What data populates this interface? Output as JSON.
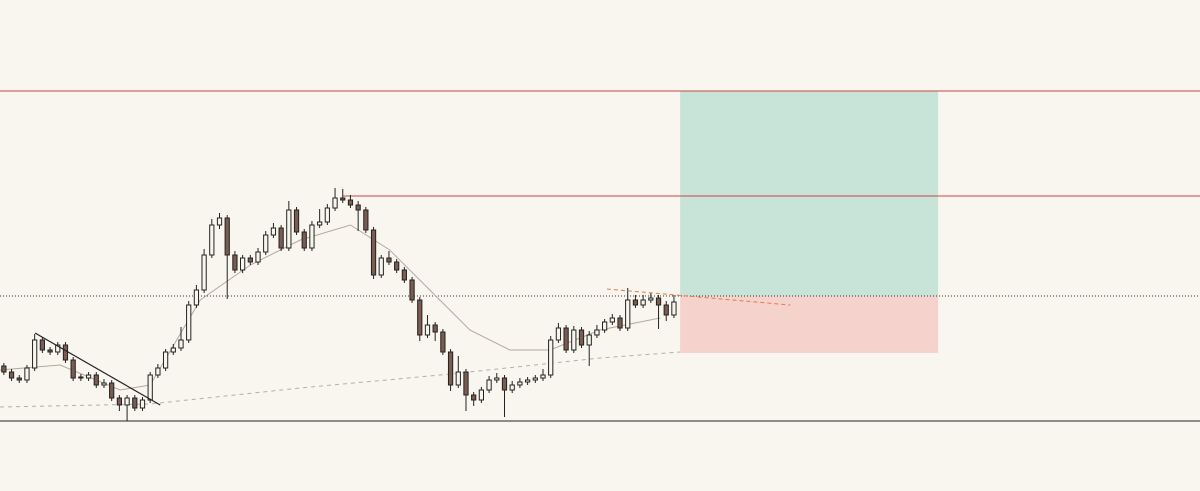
{
  "chart_data": {
    "type": "candlestick",
    "xlim": [
      -0.5,
      155.3
    ],
    "ylim": [
      0,
      491
    ],
    "up_color": "#f8f5ec",
    "down_color": "#7a5c50",
    "edge_color": "#222222",
    "candles": [
      [
        125,
        128,
        116,
        119
      ],
      [
        119,
        122,
        110,
        113
      ],
      [
        113,
        116,
        108,
        111
      ],
      [
        111,
        126,
        108,
        123
      ],
      [
        123,
        157,
        120,
        151
      ],
      [
        151,
        154,
        138,
        141
      ],
      [
        141,
        144,
        136,
        139
      ],
      [
        139,
        149,
        136,
        146
      ],
      [
        146,
        149,
        128,
        131
      ],
      [
        131,
        134,
        110,
        113
      ],
      [
        114,
        117,
        110,
        113
      ],
      [
        113,
        119,
        110,
        116
      ],
      [
        116,
        119,
        103,
        106
      ],
      [
        106,
        112,
        103,
        108
      ],
      [
        108,
        111,
        90,
        93
      ],
      [
        93,
        96,
        80,
        86
      ],
      [
        86,
        96,
        70,
        93
      ],
      [
        93,
        96,
        80,
        83
      ],
      [
        83,
        94,
        80,
        91
      ],
      [
        91,
        119,
        88,
        116
      ],
      [
        116,
        127,
        113,
        123
      ],
      [
        123,
        142,
        120,
        139
      ],
      [
        139,
        147,
        136,
        143
      ],
      [
        143,
        164,
        140,
        151
      ],
      [
        151,
        190,
        148,
        186
      ],
      [
        186,
        206,
        183,
        201
      ],
      [
        201,
        242,
        198,
        236
      ],
      [
        236,
        272,
        233,
        266
      ],
      [
        266,
        278,
        262,
        273
      ],
      [
        273,
        276,
        192,
        236
      ],
      [
        236,
        240,
        218,
        221
      ],
      [
        221,
        236,
        218,
        233
      ],
      [
        233,
        236,
        226,
        229
      ],
      [
        229,
        243,
        226,
        239
      ],
      [
        239,
        260,
        236,
        256
      ],
      [
        256,
        268,
        253,
        263
      ],
      [
        263,
        266,
        240,
        243
      ],
      [
        243,
        290,
        240,
        281
      ],
      [
        281,
        284,
        256,
        259
      ],
      [
        259,
        262,
        240,
        243
      ],
      [
        243,
        270,
        240,
        266
      ],
      [
        266,
        282,
        263,
        269
      ],
      [
        269,
        287,
        266,
        283
      ],
      [
        283,
        303,
        280,
        293
      ],
      [
        293,
        302,
        288,
        291
      ],
      [
        291,
        296,
        283,
        286
      ],
      [
        286,
        290,
        260,
        281
      ],
      [
        281,
        284,
        258,
        261
      ],
      [
        261,
        264,
        212,
        216
      ],
      [
        216,
        236,
        213,
        233
      ],
      [
        233,
        240,
        226,
        229
      ],
      [
        229,
        232,
        218,
        221
      ],
      [
        221,
        224,
        208,
        211
      ],
      [
        211,
        214,
        188,
        191
      ],
      [
        191,
        194,
        150,
        156
      ],
      [
        156,
        176,
        153,
        166
      ],
      [
        166,
        169,
        150,
        159
      ],
      [
        159,
        162,
        136,
        139
      ],
      [
        139,
        142,
        100,
        106
      ],
      [
        106,
        135,
        103,
        119
      ],
      [
        119,
        122,
        80,
        96
      ],
      [
        96,
        99,
        85,
        91
      ],
      [
        91,
        104,
        88,
        101
      ],
      [
        101,
        115,
        98,
        111
      ],
      [
        111,
        118,
        108,
        113
      ],
      [
        113,
        116,
        74,
        101
      ],
      [
        101,
        110,
        98,
        106
      ],
      [
        106,
        113,
        103,
        109
      ],
      [
        109,
        114,
        106,
        111
      ],
      [
        111,
        116,
        108,
        113
      ],
      [
        113,
        122,
        110,
        116
      ],
      [
        116,
        155,
        113,
        151
      ],
      [
        151,
        168,
        148,
        163
      ],
      [
        163,
        166,
        138,
        141
      ],
      [
        141,
        165,
        138,
        161
      ],
      [
        161,
        164,
        143,
        146
      ],
      [
        146,
        160,
        125,
        156
      ],
      [
        156,
        166,
        153,
        161
      ],
      [
        161,
        172,
        158,
        169
      ],
      [
        169,
        177,
        166,
        173
      ],
      [
        173,
        176,
        160,
        163
      ],
      [
        163,
        203,
        160,
        191
      ],
      [
        191,
        196,
        183,
        186
      ],
      [
        186,
        196,
        183,
        191
      ],
      [
        191,
        198,
        188,
        193
      ],
      [
        193,
        196,
        162,
        186
      ],
      [
        186,
        190,
        170,
        176
      ],
      [
        176,
        196,
        173,
        189
      ]
    ],
    "ma": {
      "color": "#b5a99a",
      "x": [
        -0.5,
        7.3,
        15.1,
        19,
        25.5,
        32,
        38.5,
        45,
        50.1,
        55.3,
        60.5,
        65.7,
        70.9,
        77.4,
        85.2
      ],
      "y": [
        121,
        126,
        101,
        106,
        191,
        226,
        251,
        266,
        241,
        201,
        161,
        141,
        141,
        161,
        173
      ]
    },
    "long_ma": {
      "color": "#a9b3ab",
      "x": [
        -0.5,
        19,
        38.5,
        58,
        77.4,
        87.8
      ],
      "y": [
        84,
        87,
        103,
        117,
        133,
        139
      ]
    },
    "trend_line": {
      "color": "#222222",
      "x": [
        4.05,
        20.3
      ],
      "y": [
        158,
        86
      ]
    },
    "projection_line": {
      "color": "#e07a55",
      "x": [
        78.3,
        102.1
      ],
      "y": [
        202,
        186
      ]
    },
    "levels": [
      {
        "value": 400,
        "color": "#c8444c"
      },
      {
        "value": 295,
        "start": 44,
        "color": "#c8444c"
      },
      {
        "value": 195,
        "color": "#333333",
        "dotted": true
      },
      {
        "value": 70,
        "color": "#222222"
      }
    ],
    "position": {
      "start": 87.8,
      "end": 121.3,
      "entry": 195,
      "target": 400,
      "stop": 138,
      "profit_color": "#c8e4d9",
      "loss_color": "#f6d2cd"
    }
  }
}
